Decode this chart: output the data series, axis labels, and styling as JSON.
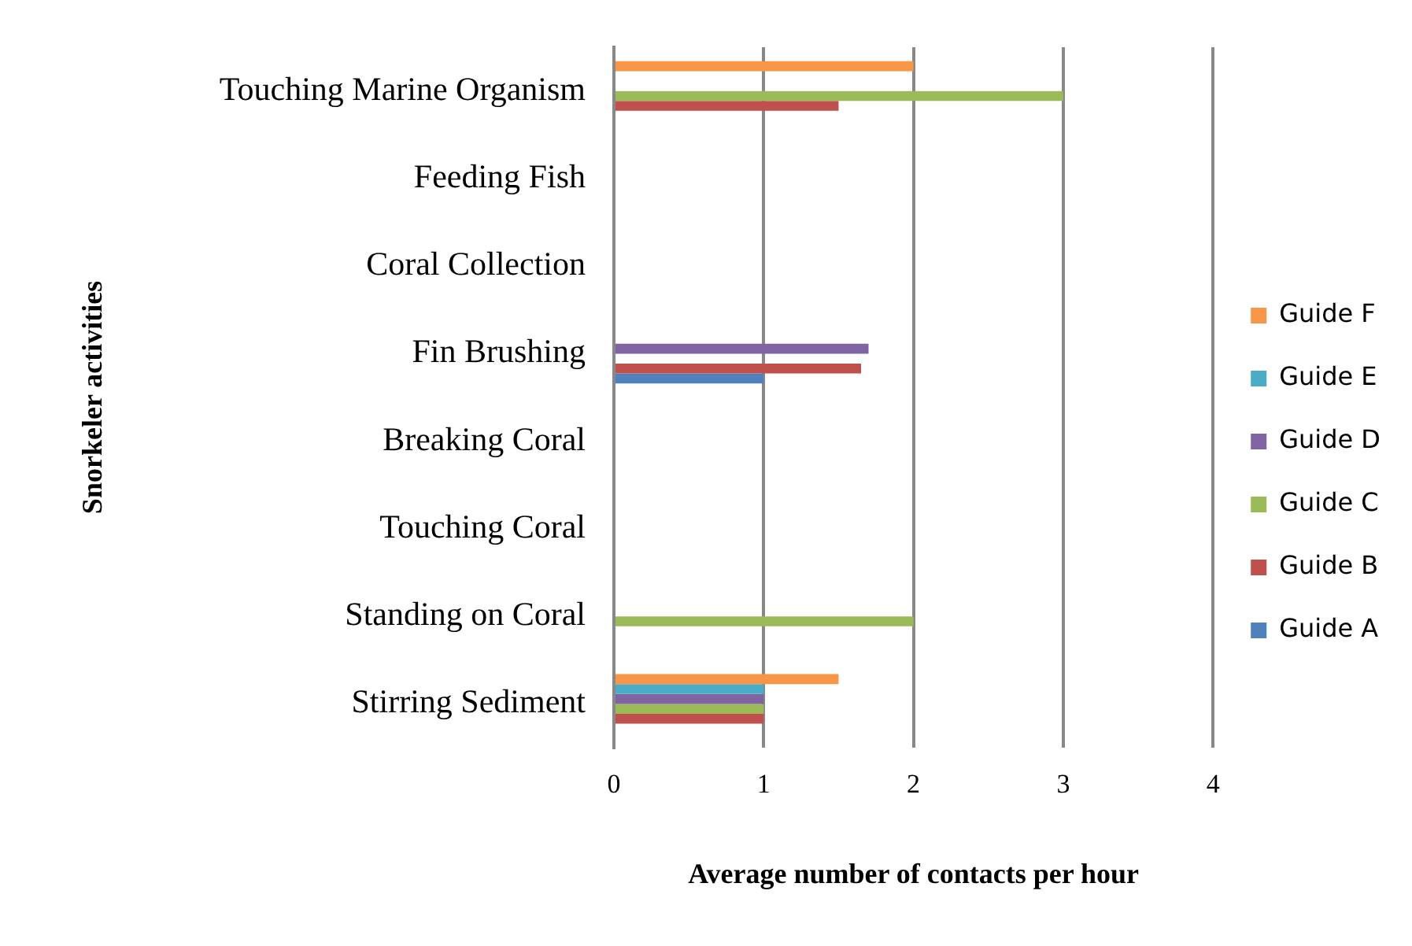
{
  "chart_data": {
    "type": "bar",
    "orientation": "horizontal",
    "xlabel": "Average number of contacts per hour",
    "ylabel": "Snorkeler activities",
    "categories": [
      "Touching Marine Organism",
      "Feeding Fish",
      "Coral Collection",
      "Fin Brushing",
      "Breaking Coral",
      "Touching Coral",
      "Standing on Coral",
      "Stirring Sediment"
    ],
    "series": [
      {
        "name": "Guide F",
        "color": "#f79646",
        "values": [
          2,
          null,
          null,
          null,
          null,
          null,
          null,
          1.5
        ]
      },
      {
        "name": "Guide E",
        "color": "#4bacc6",
        "values": [
          null,
          null,
          null,
          null,
          null,
          null,
          null,
          1
        ]
      },
      {
        "name": "Guide D",
        "color": "#8064a2",
        "values": [
          null,
          null,
          null,
          1.7,
          null,
          null,
          null,
          1
        ]
      },
      {
        "name": "Guide C",
        "color": "#9bbb59",
        "values": [
          3,
          null,
          null,
          null,
          null,
          null,
          2,
          1
        ]
      },
      {
        "name": "Guide B",
        "color": "#c0504d",
        "values": [
          1.5,
          null,
          null,
          1.65,
          null,
          null,
          null,
          1
        ]
      },
      {
        "name": "Guide A",
        "color": "#4f81bd",
        "values": [
          null,
          null,
          null,
          1,
          null,
          null,
          null,
          null
        ]
      }
    ],
    "xlim": [
      0,
      4
    ],
    "xticks": [
      0,
      1,
      2,
      3,
      4
    ],
    "grid": "x",
    "legend": "right"
  }
}
